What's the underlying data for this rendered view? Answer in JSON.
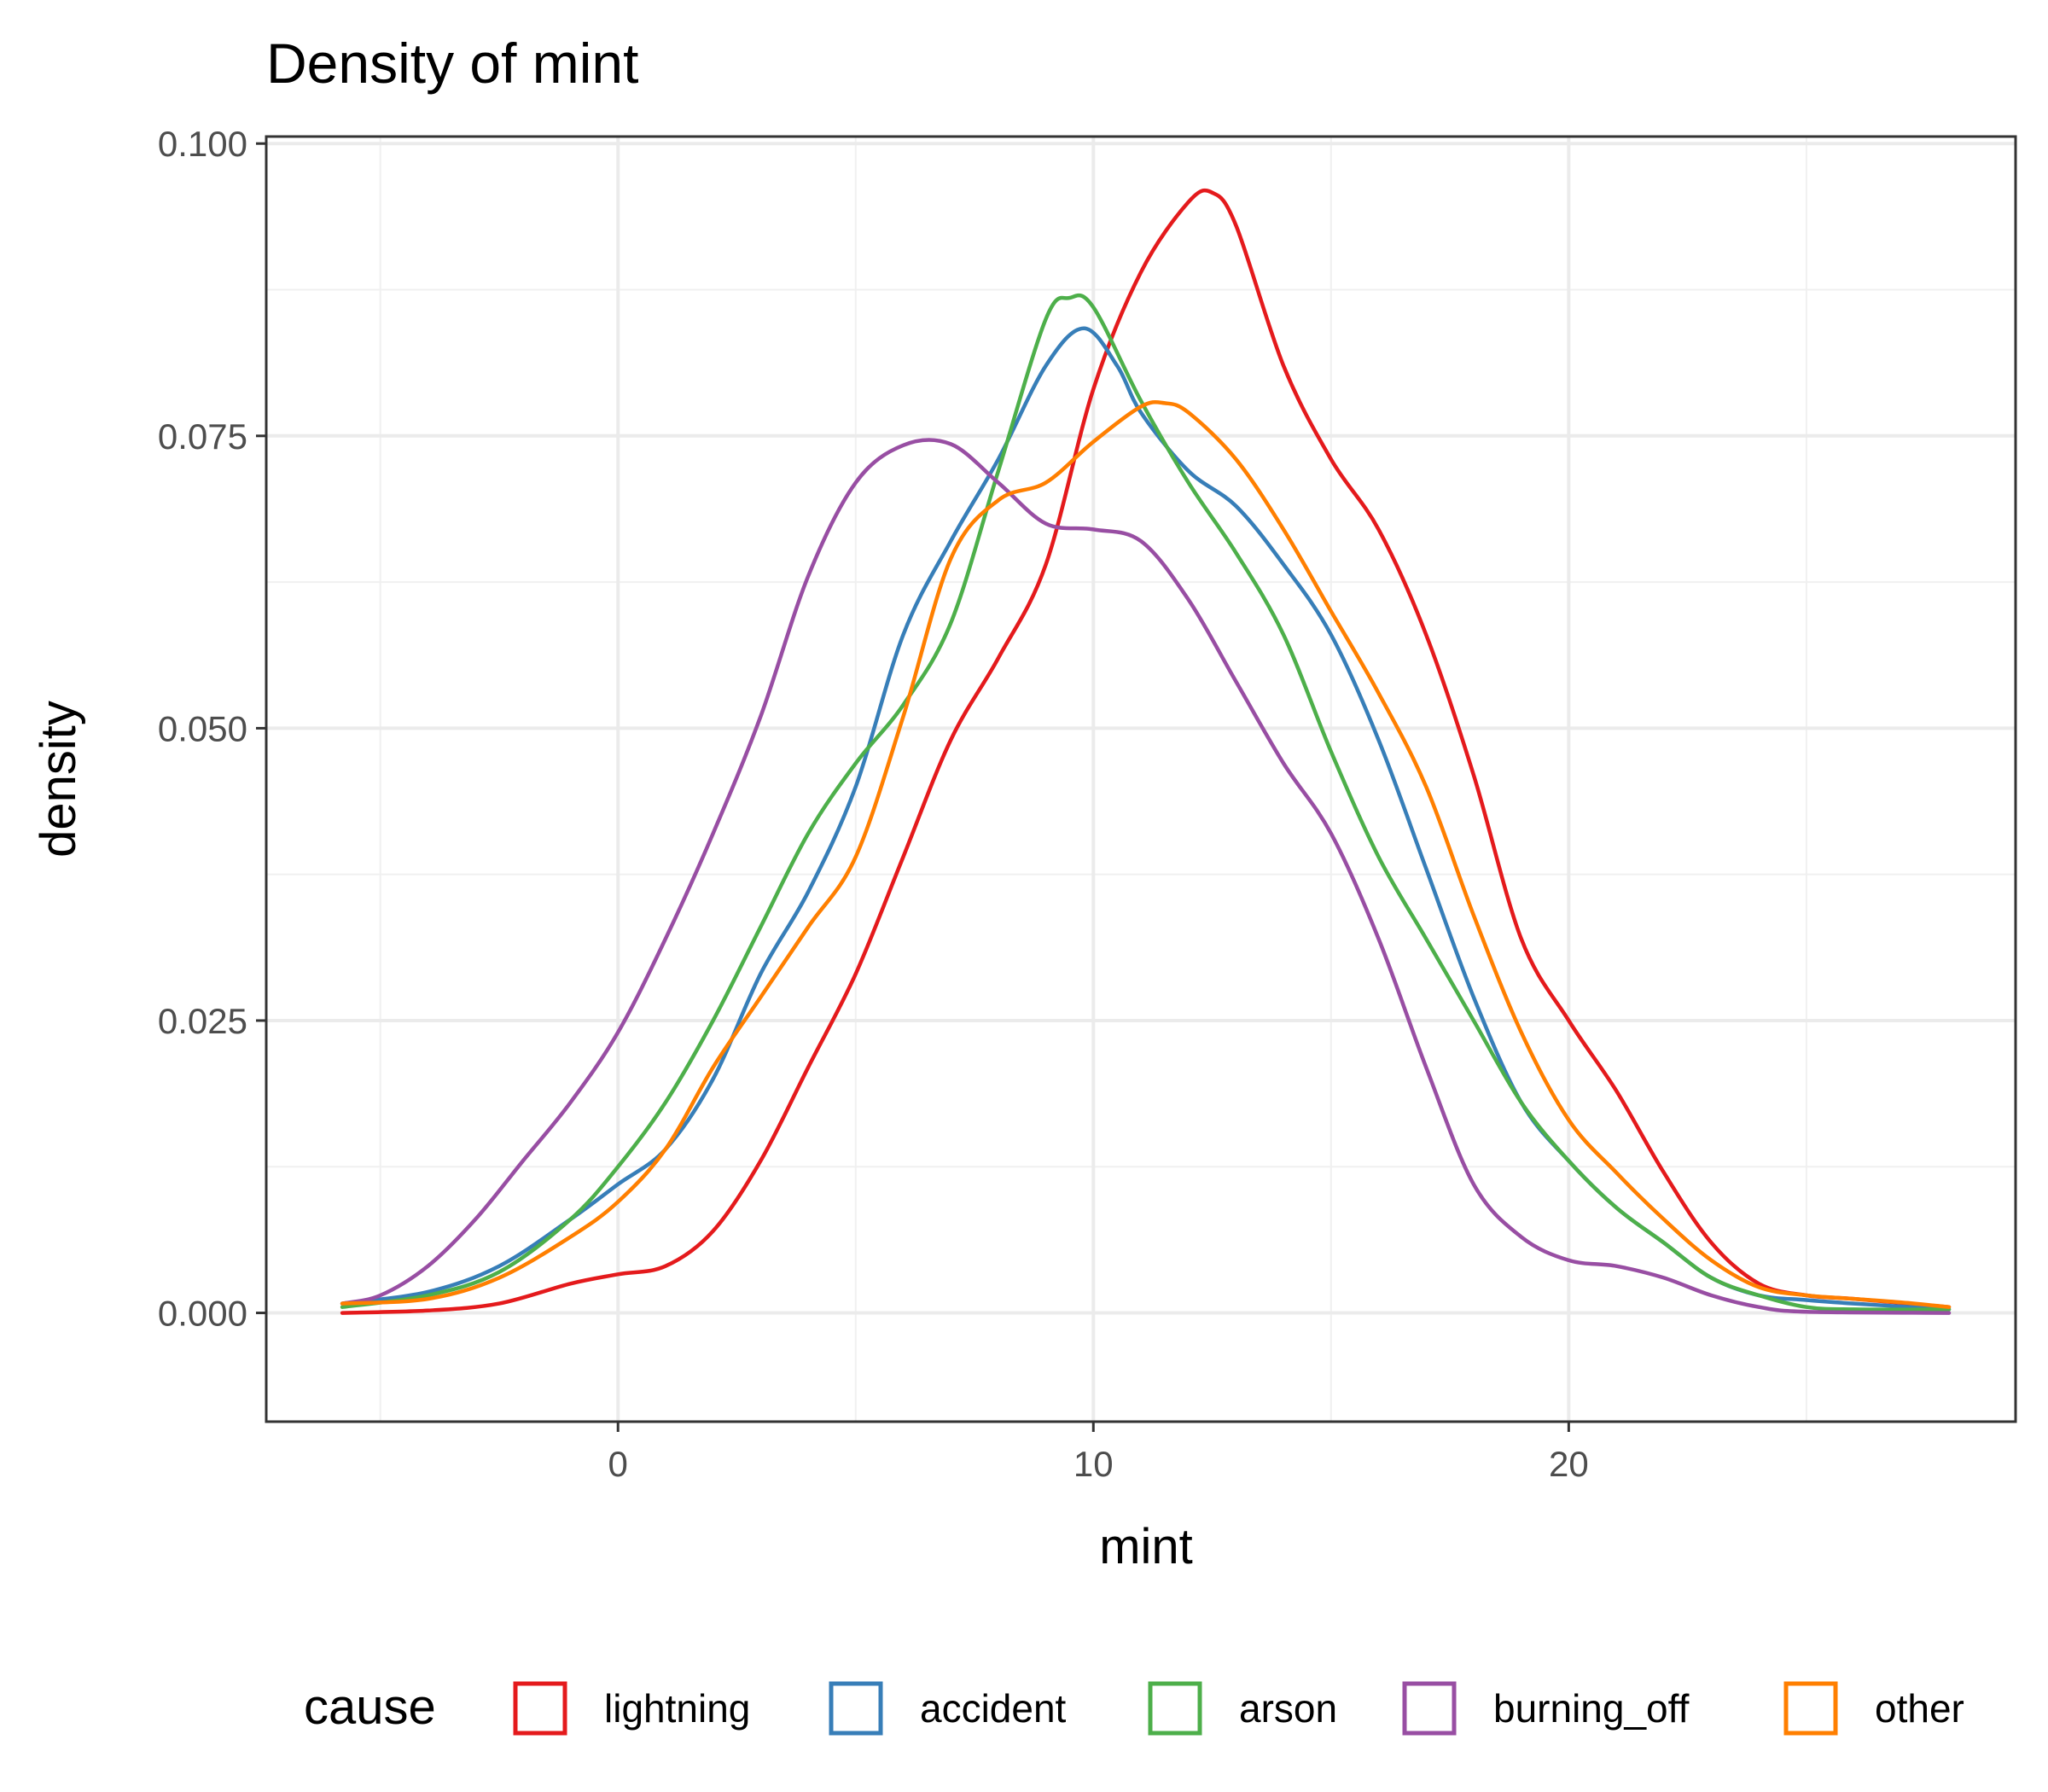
{
  "chart_data": {
    "type": "line",
    "title": "Density of mint",
    "xlabel": "mint",
    "ylabel": "density",
    "xlim": [
      -7.4,
      29.4
    ],
    "ylim": [
      -0.0093,
      0.1006
    ],
    "xticks": [
      0,
      10,
      20
    ],
    "yticks": [
      0.0,
      0.025,
      0.05,
      0.075,
      0.1
    ],
    "ytick_labels": [
      "0.000",
      "0.025",
      "0.050",
      "0.075",
      "0.100"
    ],
    "xtick_labels": [
      "0",
      "10",
      "20"
    ],
    "grid": true,
    "legend_position": "bottom",
    "legend_title": "cause",
    "series": [
      {
        "name": "lightning",
        "color": "#E41A1C",
        "points": [
          [
            -5.8,
            0.0
          ],
          [
            -4,
            0.0002
          ],
          [
            -2.5,
            0.0008
          ],
          [
            -1,
            0.0025
          ],
          [
            0,
            0.0033
          ],
          [
            1,
            0.004
          ],
          [
            2,
            0.007
          ],
          [
            3,
            0.013
          ],
          [
            4,
            0.021
          ],
          [
            5,
            0.029
          ],
          [
            6,
            0.039
          ],
          [
            7,
            0.049
          ],
          [
            8,
            0.056
          ],
          [
            9,
            0.064
          ],
          [
            10,
            0.079
          ],
          [
            11,
            0.089
          ],
          [
            12,
            0.095
          ],
          [
            12.5,
            0.0958
          ],
          [
            13,
            0.093
          ],
          [
            14,
            0.081
          ],
          [
            15,
            0.073
          ],
          [
            16,
            0.067
          ],
          [
            17,
            0.058
          ],
          [
            18,
            0.046
          ],
          [
            19,
            0.032
          ],
          [
            20,
            0.025
          ],
          [
            21,
            0.019
          ],
          [
            22,
            0.012
          ],
          [
            23,
            0.006
          ],
          [
            24,
            0.0025
          ],
          [
            25,
            0.0015
          ],
          [
            26,
            0.0012
          ],
          [
            28,
            0.0005
          ]
        ]
      },
      {
        "name": "accident",
        "color": "#377EB8",
        "points": [
          [
            -5.8,
            0.0008
          ],
          [
            -4,
            0.0018
          ],
          [
            -2.5,
            0.004
          ],
          [
            -1,
            0.008
          ],
          [
            0,
            0.011
          ],
          [
            1,
            0.014
          ],
          [
            2,
            0.02
          ],
          [
            3,
            0.029
          ],
          [
            4,
            0.036
          ],
          [
            5,
            0.045
          ],
          [
            6,
            0.058
          ],
          [
            7,
            0.066
          ],
          [
            8,
            0.073
          ],
          [
            9,
            0.081
          ],
          [
            9.8,
            0.0842
          ],
          [
            10.5,
            0.081
          ],
          [
            11,
            0.077
          ],
          [
            12,
            0.072
          ],
          [
            13,
            0.069
          ],
          [
            14,
            0.064
          ],
          [
            15,
            0.058
          ],
          [
            16,
            0.049
          ],
          [
            17,
            0.038
          ],
          [
            18,
            0.027
          ],
          [
            19,
            0.018
          ],
          [
            20,
            0.013
          ],
          [
            21,
            0.009
          ],
          [
            22,
            0.006
          ],
          [
            23,
            0.003
          ],
          [
            24,
            0.0015
          ],
          [
            25,
            0.0011
          ],
          [
            26,
            0.0008
          ],
          [
            28,
            0.0003
          ]
        ]
      },
      {
        "name": "arson",
        "color": "#4DAF4A",
        "points": [
          [
            -5.8,
            0.0005
          ],
          [
            -4,
            0.0015
          ],
          [
            -2.5,
            0.0035
          ],
          [
            -1,
            0.008
          ],
          [
            0,
            0.0125
          ],
          [
            1,
            0.018
          ],
          [
            2,
            0.025
          ],
          [
            3,
            0.033
          ],
          [
            4,
            0.041
          ],
          [
            5,
            0.047
          ],
          [
            6,
            0.052
          ],
          [
            7,
            0.059
          ],
          [
            8,
            0.072
          ],
          [
            9,
            0.085
          ],
          [
            9.5,
            0.0868
          ],
          [
            10,
            0.086
          ],
          [
            11,
            0.078
          ],
          [
            12,
            0.071
          ],
          [
            13,
            0.065
          ],
          [
            14,
            0.058
          ],
          [
            15,
            0.048
          ],
          [
            16,
            0.039
          ],
          [
            17,
            0.032
          ],
          [
            18,
            0.025
          ],
          [
            19,
            0.018
          ],
          [
            20,
            0.013
          ],
          [
            21,
            0.009
          ],
          [
            22,
            0.006
          ],
          [
            23,
            0.003
          ],
          [
            24,
            0.0015
          ],
          [
            25,
            0.0005
          ],
          [
            26,
            0.0003
          ],
          [
            28,
            0.0003
          ]
        ]
      },
      {
        "name": "burning_off",
        "color": "#984EA3",
        "points": [
          [
            -5.8,
            0.0008
          ],
          [
            -5,
            0.0015
          ],
          [
            -4,
            0.004
          ],
          [
            -3,
            0.008
          ],
          [
            -2,
            0.013
          ],
          [
            -1,
            0.018
          ],
          [
            0,
            0.024
          ],
          [
            1,
            0.032
          ],
          [
            2,
            0.041
          ],
          [
            3,
            0.051
          ],
          [
            4,
            0.063
          ],
          [
            5,
            0.071
          ],
          [
            6,
            0.0742
          ],
          [
            7,
            0.0743
          ],
          [
            8,
            0.071
          ],
          [
            9,
            0.0675
          ],
          [
            10,
            0.067
          ],
          [
            11,
            0.066
          ],
          [
            12,
            0.061
          ],
          [
            13,
            0.054
          ],
          [
            14,
            0.047
          ],
          [
            15,
            0.041
          ],
          [
            16,
            0.032
          ],
          [
            17,
            0.021
          ],
          [
            18,
            0.011
          ],
          [
            19,
            0.0065
          ],
          [
            20,
            0.0045
          ],
          [
            21,
            0.004
          ],
          [
            22,
            0.003
          ],
          [
            23,
            0.0015
          ],
          [
            24,
            0.0005
          ],
          [
            25,
            0.0001
          ],
          [
            28,
            0.0
          ]
        ]
      },
      {
        "name": "other",
        "color": "#FF7F00",
        "points": [
          [
            -5.8,
            0.0008
          ],
          [
            -4,
            0.0012
          ],
          [
            -2.5,
            0.003
          ],
          [
            -1,
            0.0065
          ],
          [
            0,
            0.0095
          ],
          [
            1,
            0.014
          ],
          [
            2,
            0.021
          ],
          [
            3,
            0.027
          ],
          [
            4,
            0.033
          ],
          [
            5,
            0.039
          ],
          [
            6,
            0.051
          ],
          [
            7,
            0.0645
          ],
          [
            8,
            0.0695
          ],
          [
            9,
            0.071
          ],
          [
            10,
            0.0745
          ],
          [
            11,
            0.0775
          ],
          [
            11.5,
            0.0778
          ],
          [
            12,
            0.077
          ],
          [
            13,
            0.073
          ],
          [
            14,
            0.067
          ],
          [
            15,
            0.06
          ],
          [
            16,
            0.053
          ],
          [
            17,
            0.045
          ],
          [
            18,
            0.034
          ],
          [
            19,
            0.024
          ],
          [
            20,
            0.0165
          ],
          [
            21,
            0.012
          ],
          [
            22,
            0.008
          ],
          [
            23,
            0.0045
          ],
          [
            24,
            0.0022
          ],
          [
            25,
            0.0015
          ],
          [
            26,
            0.0012
          ],
          [
            27,
            0.0009
          ],
          [
            28,
            0.0005
          ]
        ]
      }
    ]
  }
}
